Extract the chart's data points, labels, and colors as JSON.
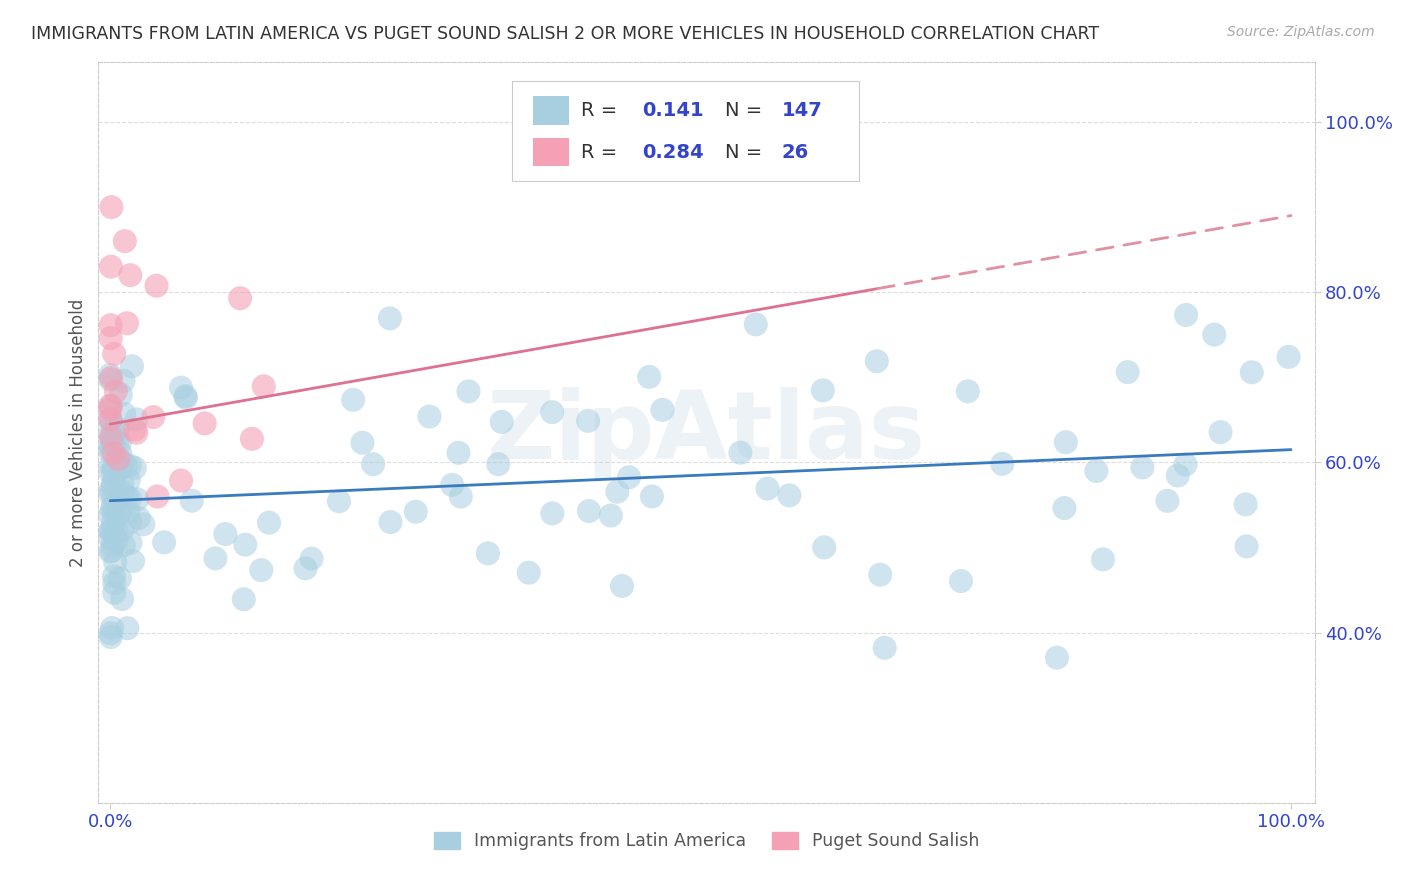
{
  "title": "IMMIGRANTS FROM LATIN AMERICA VS PUGET SOUND SALISH 2 OR MORE VEHICLES IN HOUSEHOLD CORRELATION CHART",
  "source": "Source: ZipAtlas.com",
  "ylabel": "2 or more Vehicles in Household",
  "watermark": "ZipAtlas",
  "blue_label": "Immigrants from Latin America",
  "pink_label": "Puget Sound Salish",
  "R_blue": 0.141,
  "N_blue": 147,
  "R_pink": 0.284,
  "N_pink": 26,
  "blue_color": "#a8cfe0",
  "pink_color": "#f4a0b5",
  "blue_line_color": "#3a7abf",
  "pink_line_color": "#e07090",
  "pink_dash_color": "#e090a0",
  "title_color": "#333333",
  "source_color": "#aaaaaa",
  "axis_label_color": "#555555",
  "tick_color": "#3344cc",
  "background_color": "#ffffff",
  "grid_color": "#dddddd",
  "blue_trend_y0": 0.555,
  "blue_trend_y1": 0.615,
  "pink_trend_y0": 0.645,
  "pink_trend_y1": 0.89,
  "ylim_low": 0.2,
  "ylim_high": 1.07,
  "xlim_low": -0.01,
  "xlim_high": 1.02
}
